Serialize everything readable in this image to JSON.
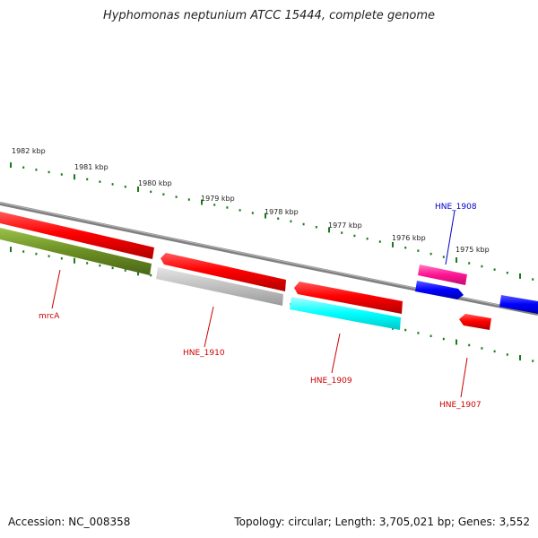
{
  "title": "Hyphomonas neptunium ATCC 15444, complete genome",
  "footer": {
    "accession": "Accession: NC_008358",
    "summary": "Topology: circular; Length: 3,705,021 bp; Genes: 3,552"
  },
  "kbp_labels": [
    "1982 kbp",
    "1981 kbp",
    "1980 kbp",
    "1979 kbp",
    "1978 kbp",
    "1977 kbp",
    "1976 kbp",
    "1975 kbp"
  ],
  "gene_labels": [
    "HNE_1908",
    "mrcA",
    "HNE_1910",
    "HNE_1909",
    "HNE_1907"
  ],
  "colors": {
    "backbone": "#808080",
    "ruler": "#1a7a1a",
    "red": "#ff0000",
    "olive": "#6b8e23",
    "gray": "#c0c0c0",
    "cyan": "#00ffff",
    "magenta": "#ff1493",
    "blue": "#0000ff",
    "label_red": "#cc0000",
    "label_blue": "#0000cc"
  }
}
